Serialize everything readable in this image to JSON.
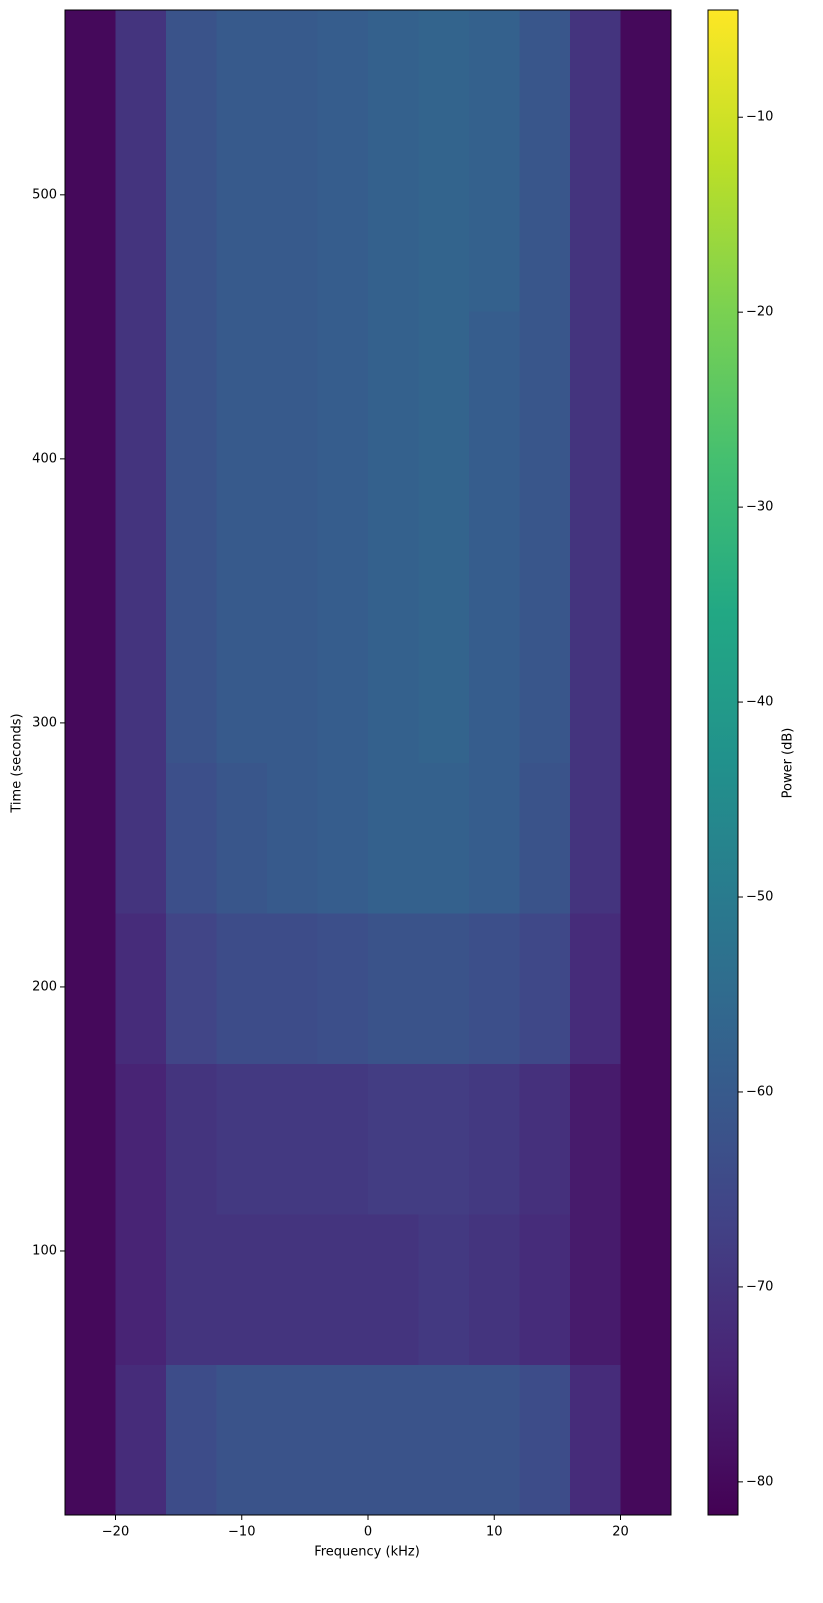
{
  "chart_data": {
    "type": "heatmap",
    "xlabel": "Frequency (kHz)",
    "ylabel": "Time (seconds)",
    "colorbar_label": "Power (dB)",
    "colormap": "viridis",
    "xlim": [
      -24,
      24
    ],
    "xticks": [
      {
        "value": -20,
        "label": "−20"
      },
      {
        "value": -10,
        "label": "−10"
      },
      0,
      10,
      20
    ],
    "ylim": [
      0,
      570
    ],
    "yticks": [
      100,
      200,
      300,
      400,
      500
    ],
    "clim": [
      -81.7,
      -4.5
    ],
    "cticks": [
      {
        "value": -80,
        "label": "−80"
      },
      {
        "value": -70,
        "label": "−70"
      },
      {
        "value": -60,
        "label": "−60"
      },
      {
        "value": -50,
        "label": "−50"
      },
      {
        "value": -40,
        "label": "−40"
      },
      {
        "value": -30,
        "label": "−30"
      },
      {
        "value": -20,
        "label": "−20"
      },
      {
        "value": -10,
        "label": "−10"
      }
    ],
    "xbins": [
      -24,
      -20,
      -16,
      -12,
      -8,
      -4,
      0,
      4,
      8,
      12,
      16,
      20,
      24
    ],
    "ybins": [
      0,
      57,
      114,
      171,
      228,
      285,
      342,
      399,
      456,
      513,
      570
    ],
    "values": [
      [
        -80,
        -72,
        -64,
        -62,
        -62,
        -62,
        -62,
        -62,
        -62,
        -64,
        -72,
        -80
      ],
      [
        -80,
        -74,
        -70,
        -70,
        -70,
        -70,
        -70,
        -69,
        -70,
        -72,
        -76,
        -80
      ],
      [
        -80,
        -74,
        -70,
        -69,
        -69,
        -69,
        -68,
        -68,
        -69,
        -71,
        -76,
        -80
      ],
      [
        -80,
        -72,
        -66,
        -64,
        -64,
        -63,
        -62,
        -62,
        -63,
        -65,
        -72,
        -80
      ],
      [
        -80,
        -70,
        -63,
        -61,
        -60,
        -59,
        -58,
        -58,
        -59,
        -62,
        -70,
        -80
      ],
      [
        -80,
        -70,
        -62,
        -60,
        -60,
        -59,
        -58,
        -57,
        -59,
        -61,
        -70,
        -80
      ],
      [
        -80,
        -70,
        -62,
        -60,
        -60,
        -59,
        -58,
        -57,
        -59,
        -61,
        -70,
        -80
      ],
      [
        -80,
        -70,
        -62,
        -60,
        -60,
        -59,
        -58,
        -57,
        -59,
        -61,
        -70,
        -80
      ],
      [
        -80,
        -70,
        -62,
        -60,
        -60,
        -59,
        -58,
        -57,
        -58,
        -61,
        -70,
        -80
      ],
      [
        -80,
        -70,
        -62,
        -60,
        -60,
        -59,
        -58,
        -57,
        -58,
        -61,
        -70,
        -80
      ]
    ]
  }
}
